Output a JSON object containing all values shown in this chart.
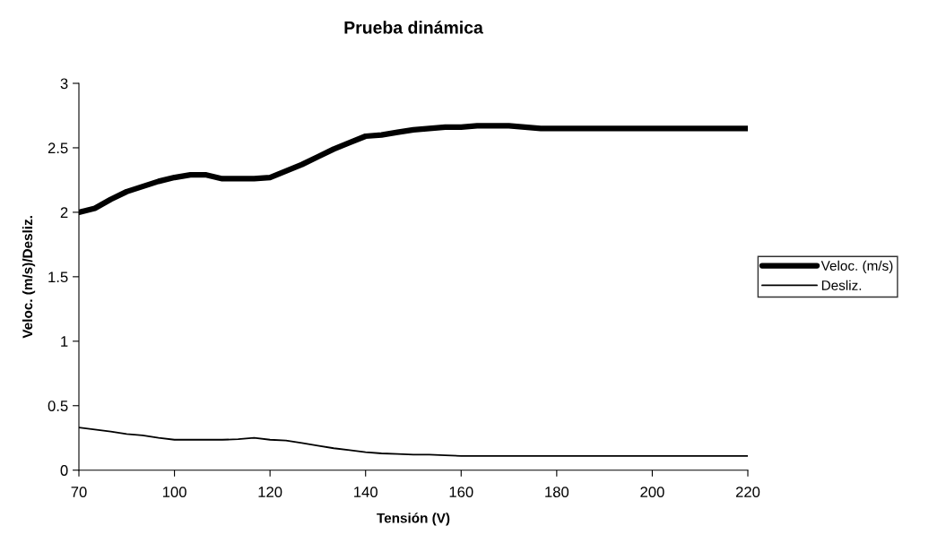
{
  "chart_data": {
    "type": "line",
    "title": "Prueba dinámica",
    "xlabel": "Tensión (V)",
    "ylabel": "Veloc. (m/s)/Desliz.",
    "categories": [
      "70",
      null,
      null,
      null,
      null,
      null,
      "100",
      null,
      null,
      null,
      null,
      null,
      "120",
      null,
      null,
      null,
      null,
      null,
      "140",
      null,
      null,
      null,
      null,
      null,
      "160",
      null,
      null,
      null,
      null,
      null,
      "180",
      null,
      null,
      null,
      null,
      null,
      "200",
      null,
      null,
      null,
      null,
      null,
      "220"
    ],
    "series": [
      {
        "name": "Veloc. (m/s)",
        "color": "#000000",
        "values": [
          2.0,
          2.03,
          2.1,
          2.16,
          2.2,
          2.24,
          2.27,
          2.29,
          2.29,
          2.26,
          2.26,
          2.26,
          2.27,
          2.32,
          2.37,
          2.43,
          2.49,
          2.54,
          2.59,
          2.6,
          2.62,
          2.64,
          2.65,
          2.66,
          2.66,
          2.67,
          2.67,
          2.67,
          2.66,
          2.65,
          2.65,
          2.65,
          2.65,
          2.65,
          2.65,
          2.65,
          2.65,
          2.65,
          2.65,
          2.65,
          2.65,
          2.65,
          2.65
        ]
      },
      {
        "name": "Desliz.",
        "color": "#000000",
        "values": [
          0.33,
          0.315,
          0.3,
          0.28,
          0.27,
          0.25,
          0.236,
          0.236,
          0.236,
          0.236,
          0.24,
          0.25,
          0.236,
          0.23,
          0.21,
          0.19,
          0.17,
          0.155,
          0.14,
          0.13,
          0.125,
          0.12,
          0.12,
          0.115,
          0.11,
          0.11,
          0.11,
          0.11,
          0.11,
          0.11,
          0.11,
          0.11,
          0.11,
          0.11,
          0.11,
          0.11,
          0.11,
          0.11,
          0.11,
          0.11,
          0.11,
          0.11,
          0.11
        ]
      }
    ],
    "ylim": [
      0,
      3
    ],
    "yticks": [
      0,
      0.5,
      1,
      1.5,
      2,
      2.5,
      3
    ],
    "grid": false,
    "legend": "right",
    "marker": "none",
    "line_style": "solid"
  }
}
